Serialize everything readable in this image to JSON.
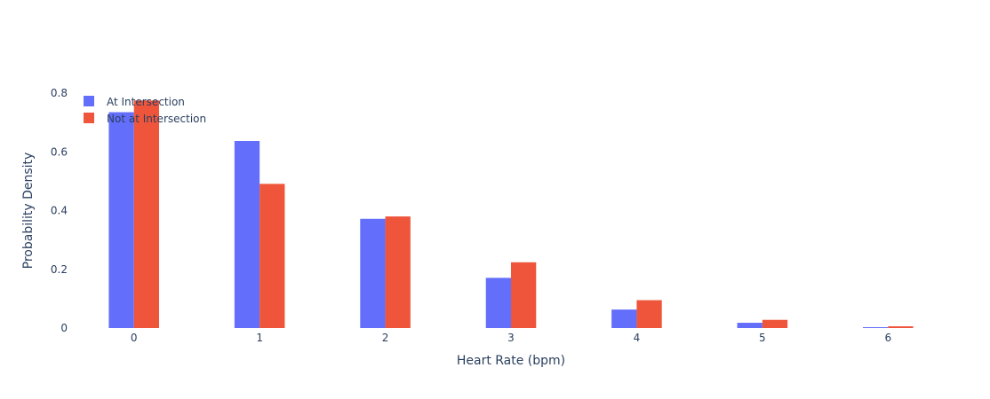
{
  "chart_data": {
    "type": "bar",
    "xlabel": "Heart Rate (bpm)",
    "ylabel": "Probability Density",
    "categories": [
      "0",
      "1",
      "2",
      "3",
      "4",
      "5",
      "6"
    ],
    "ylim": [
      0,
      0.8
    ],
    "yticks": [
      0,
      0.2,
      0.4,
      0.6,
      0.8
    ],
    "ytick_labels": [
      "0",
      "0.2",
      "0.4",
      "0.6",
      "0.8"
    ],
    "legend_position": "top-left",
    "grid": false,
    "series": [
      {
        "name": "At Intersection",
        "color": "#636efa",
        "values": [
          0.735,
          0.637,
          0.372,
          0.171,
          0.063,
          0.018,
          0.003
        ]
      },
      {
        "name": "Not at Intersection",
        "color": "#ef553b",
        "values": [
          0.775,
          0.491,
          0.38,
          0.224,
          0.095,
          0.028,
          0.006
        ]
      }
    ]
  }
}
